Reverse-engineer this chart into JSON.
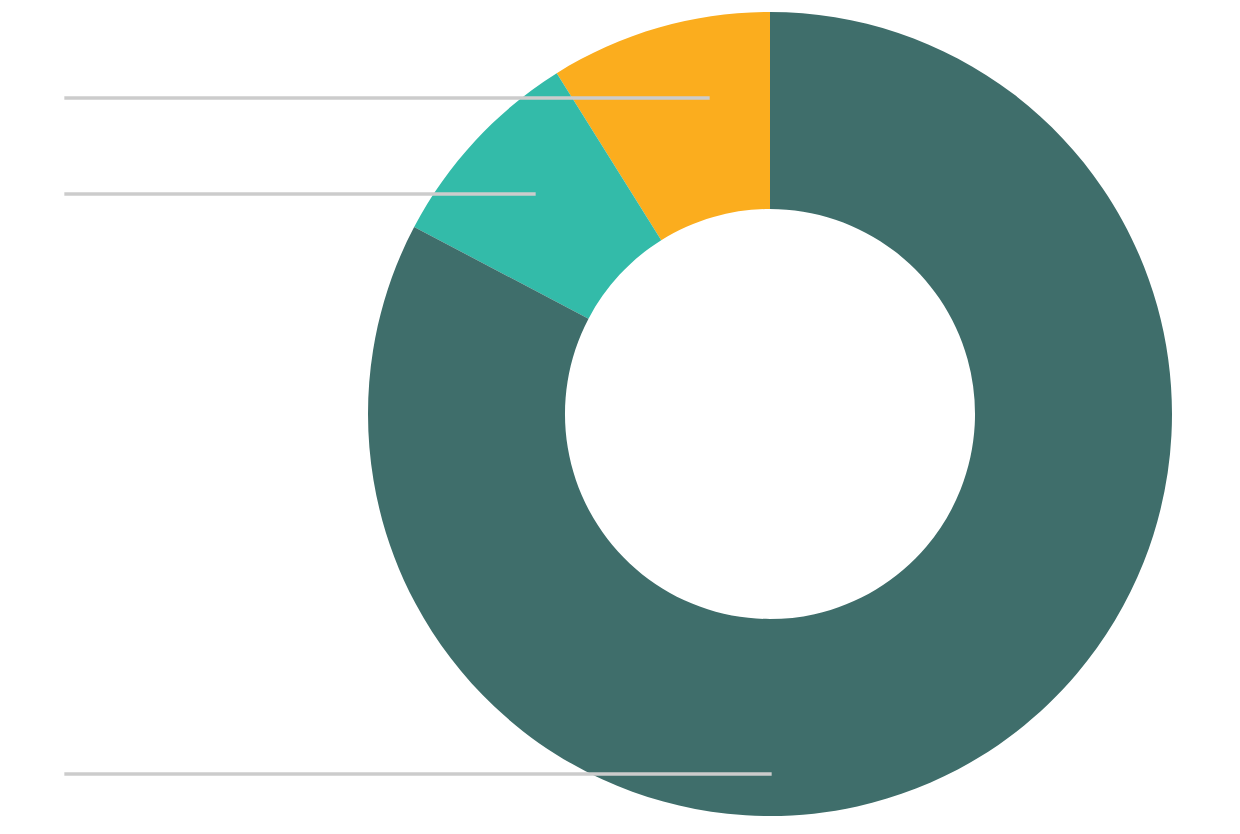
{
  "chart_data": {
    "type": "donut",
    "categories": [
      null,
      null,
      null
    ],
    "values": [
      8.9,
      8.4,
      82.7
    ],
    "colors": [
      "#fbad1e",
      "#33bba9",
      "#3f6e6b"
    ],
    "legend": false
  }
}
